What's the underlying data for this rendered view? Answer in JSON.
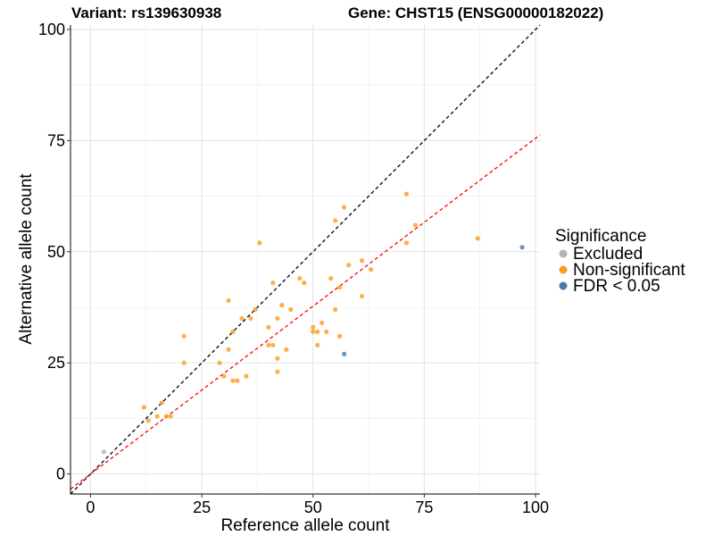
{
  "chart_data": {
    "type": "scatter",
    "title_left": "Variant: rs139630938",
    "title_right": "Gene: CHST15 (ENSG00000182022)",
    "xlabel": "Reference allele count",
    "ylabel": "Alternative allele count",
    "xlim": [
      -4.5,
      101
    ],
    "ylim": [
      -4.5,
      101
    ],
    "x_ticks": [
      0,
      25,
      50,
      75,
      100
    ],
    "y_ticks": [
      0,
      25,
      50,
      75,
      100
    ],
    "x_tick_labels": [
      "0",
      "25",
      "50",
      "75",
      "100"
    ],
    "y_tick_labels": [
      "0",
      "25",
      "50",
      "75",
      "100"
    ],
    "grid": true,
    "reference_lines": [
      {
        "name": "identity",
        "slope": 1.0,
        "intercept": 0,
        "color": "#000000",
        "dash": true
      },
      {
        "name": "expected-ratio",
        "slope": 0.755,
        "intercept": 0,
        "color": "#ff0000",
        "dash": true
      }
    ],
    "legend": {
      "title": "Significance",
      "position": "right",
      "entries": [
        {
          "label": "Excluded",
          "color": "#b3b3b3"
        },
        {
          "label": "Non-significant",
          "color": "#ff9a1f"
        },
        {
          "label": "FDR < 0.05",
          "color": "#4a79a8"
        }
      ]
    },
    "series": [
      {
        "name": "Excluded",
        "color": "#b3b3b3",
        "points": [
          [
            3,
            5
          ]
        ]
      },
      {
        "name": "Non-significant",
        "color": "#ff9a1f",
        "points": [
          [
            12,
            15
          ],
          [
            13,
            12
          ],
          [
            15,
            13
          ],
          [
            16,
            16
          ],
          [
            17,
            13
          ],
          [
            18,
            13
          ],
          [
            21,
            31
          ],
          [
            21,
            25
          ],
          [
            29,
            25
          ],
          [
            30,
            22
          ],
          [
            31,
            28
          ],
          [
            31,
            39
          ],
          [
            32,
            21
          ],
          [
            32,
            32
          ],
          [
            33,
            21
          ],
          [
            34,
            35
          ],
          [
            35,
            22
          ],
          [
            36,
            35
          ],
          [
            37,
            37
          ],
          [
            38,
            52
          ],
          [
            40,
            33
          ],
          [
            40,
            29
          ],
          [
            41,
            43
          ],
          [
            41,
            29
          ],
          [
            42,
            26
          ],
          [
            42,
            23
          ],
          [
            42,
            35
          ],
          [
            43,
            38
          ],
          [
            44,
            28
          ],
          [
            45,
            37
          ],
          [
            47,
            44
          ],
          [
            48,
            43
          ],
          [
            50,
            32
          ],
          [
            50,
            33
          ],
          [
            51,
            29
          ],
          [
            51,
            32
          ],
          [
            52,
            34
          ],
          [
            53,
            32
          ],
          [
            54,
            44
          ],
          [
            55,
            37
          ],
          [
            55,
            57
          ],
          [
            56,
            31
          ],
          [
            56,
            42
          ],
          [
            57,
            60
          ],
          [
            58,
            47
          ],
          [
            61,
            48
          ],
          [
            61,
            40
          ],
          [
            63,
            46
          ],
          [
            71,
            63
          ],
          [
            71,
            52
          ],
          [
            73,
            56
          ],
          [
            87,
            53
          ]
        ]
      },
      {
        "name": "FDR < 0.05",
        "color": "#4a79a8",
        "points": [
          [
            57,
            27
          ],
          [
            97,
            51
          ]
        ]
      }
    ]
  }
}
